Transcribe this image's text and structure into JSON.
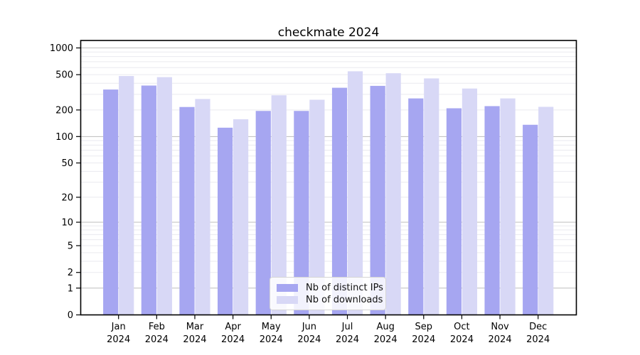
{
  "chart_data": {
    "type": "bar",
    "title": "checkmate 2024",
    "categories": [
      "Jan",
      "Feb",
      "Mar",
      "Apr",
      "May",
      "Jun",
      "Jul",
      "Aug",
      "Sep",
      "Oct",
      "Nov",
      "Dec"
    ],
    "x_year": "2024",
    "series": [
      {
        "name": "Nb of distinct IPs",
        "color": "#a6a6f1",
        "values": [
          340,
          377,
          216,
          126,
          195,
          195,
          356,
          374,
          270,
          209,
          221,
          136
        ]
      },
      {
        "name": "Nb of downloads",
        "color": "#d8d8f6",
        "values": [
          483,
          469,
          266,
          157,
          293,
          261,
          546,
          519,
          454,
          349,
          270,
          217
        ]
      }
    ],
    "yscale": "log1p",
    "yticks": [
      0,
      1,
      2,
      5,
      10,
      20,
      50,
      100,
      200,
      500,
      1000
    ],
    "ylim": [
      0,
      1200
    ],
    "grid": "horizontal major and minor gridlines",
    "legend_position": "inside bottom-center",
    "major_grid_color": "#bdbdbd",
    "minor_grid_color": "#eaeaef"
  }
}
